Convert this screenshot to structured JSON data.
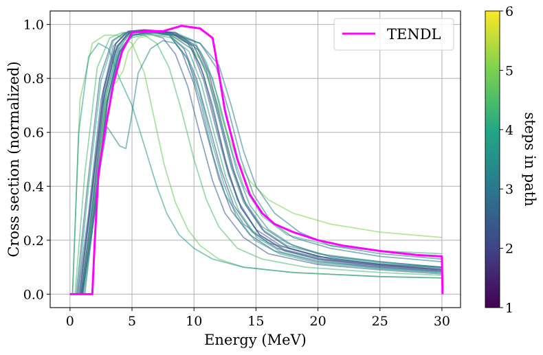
{
  "chart_data": {
    "type": "line",
    "xlabel": "Energy (MeV)",
    "ylabel": "Cross section (normalized)",
    "xlim": [
      -1.6,
      31.5
    ],
    "ylim": [
      -0.05,
      1.05
    ],
    "x_ticks": [
      0,
      5,
      10,
      15,
      20,
      25,
      30
    ],
    "x_tick_labels": [
      "0",
      "5",
      "10",
      "15",
      "20",
      "25",
      "30"
    ],
    "y_ticks": [
      0.0,
      0.2,
      0.4,
      0.6,
      0.8,
      1.0
    ],
    "y_tick_labels": [
      "0.0",
      "0.2",
      "0.4",
      "0.6",
      "0.8",
      "1.0"
    ],
    "grid": true,
    "legend": {
      "position": "top-right",
      "entries": [
        {
          "label": "TENDL",
          "color": "#ff00ff"
        }
      ]
    },
    "colorbar": {
      "label": "steps in path",
      "min": 1,
      "max": 6,
      "ticks": [
        1,
        2,
        3,
        4,
        5,
        6
      ],
      "tick_labels": [
        "1",
        "2",
        "3",
        "4",
        "5",
        "6"
      ],
      "colormap": "viridis",
      "colors": [
        "#440154",
        "#414487",
        "#2a788e",
        "#22a884",
        "#7ad151",
        "#fde725"
      ]
    },
    "series": [
      {
        "name": "TENDL",
        "color": "#ff00ff",
        "x": [
          0,
          1.8,
          2.0,
          2.3,
          2.8,
          3.5,
          4.2,
          5.0,
          6.0,
          7.5,
          9.0,
          10.5,
          11.5,
          12.0,
          12.5,
          13.5,
          14.5,
          15.5,
          16.5,
          18.0,
          20.0,
          22.0,
          25.0,
          28.0,
          30.0,
          30.05
        ],
        "y": [
          0.0,
          0.0,
          0.2,
          0.45,
          0.6,
          0.78,
          0.9,
          0.97,
          0.975,
          0.975,
          0.995,
          0.985,
          0.95,
          0.82,
          0.68,
          0.5,
          0.37,
          0.3,
          0.26,
          0.23,
          0.2,
          0.18,
          0.16,
          0.145,
          0.14,
          0.0
        ]
      }
    ],
    "ensemble": [
      {
        "steps": 2.6,
        "x": [
          0,
          0.6,
          1.5,
          2.5,
          3.5,
          4.5,
          6.0,
          8.0,
          9.5,
          10.5,
          11.5,
          12.5,
          13.5,
          15.0,
          17.0,
          20.0,
          25.0,
          30.0
        ],
        "y": [
          0.0,
          0.0,
          0.3,
          0.72,
          0.92,
          0.97,
          0.98,
          0.97,
          0.93,
          0.85,
          0.7,
          0.5,
          0.35,
          0.24,
          0.18,
          0.14,
          0.11,
          0.09
        ]
      },
      {
        "steps": 2.2,
        "x": [
          0,
          0.8,
          1.7,
          2.7,
          3.7,
          4.7,
          6.0,
          8.0,
          9.0,
          10.0,
          11.0,
          12.0,
          13.0,
          14.5,
          16.5,
          20.0,
          25.0,
          30.0
        ],
        "y": [
          0.0,
          0.0,
          0.35,
          0.75,
          0.93,
          0.975,
          0.98,
          0.96,
          0.9,
          0.78,
          0.6,
          0.43,
          0.31,
          0.22,
          0.16,
          0.12,
          0.1,
          0.085
        ]
      },
      {
        "steps": 3.0,
        "x": [
          0,
          1.0,
          1.9,
          2.9,
          3.9,
          4.9,
          6.5,
          8.5,
          10.0,
          11.0,
          12.0,
          13.0,
          14.0,
          15.5,
          17.5,
          20.0,
          25.0,
          30.0
        ],
        "y": [
          0.0,
          0.0,
          0.33,
          0.73,
          0.91,
          0.97,
          0.975,
          0.965,
          0.92,
          0.83,
          0.66,
          0.48,
          0.35,
          0.25,
          0.19,
          0.15,
          0.12,
          0.1
        ]
      },
      {
        "steps": 2.4,
        "x": [
          0,
          0.5,
          1.4,
          2.4,
          3.4,
          4.4,
          6.0,
          7.5,
          8.5,
          9.5,
          10.5,
          11.5,
          12.5,
          14.0,
          16.0,
          20.0,
          25.0,
          30.0
        ],
        "y": [
          0.0,
          0.0,
          0.4,
          0.8,
          0.94,
          0.97,
          0.97,
          0.95,
          0.89,
          0.77,
          0.59,
          0.42,
          0.3,
          0.21,
          0.15,
          0.11,
          0.09,
          0.075
        ]
      },
      {
        "steps": 3.4,
        "x": [
          0,
          1.2,
          2.1,
          3.1,
          4.1,
          5.1,
          7.0,
          9.0,
          10.5,
          11.5,
          12.5,
          13.5,
          14.5,
          16.0,
          18.0,
          21.0,
          25.0,
          30.0
        ],
        "y": [
          0.0,
          0.0,
          0.36,
          0.74,
          0.9,
          0.96,
          0.97,
          0.955,
          0.9,
          0.8,
          0.62,
          0.45,
          0.33,
          0.24,
          0.18,
          0.14,
          0.12,
          0.1
        ]
      },
      {
        "steps": 2.0,
        "x": [
          0,
          0.7,
          1.6,
          2.6,
          3.6,
          4.6,
          6.0,
          8.0,
          9.2,
          10.2,
          11.2,
          12.2,
          13.2,
          14.7,
          16.7,
          20.0,
          25.0,
          30.0
        ],
        "y": [
          0.0,
          0.0,
          0.3,
          0.7,
          0.9,
          0.965,
          0.975,
          0.96,
          0.91,
          0.8,
          0.63,
          0.46,
          0.33,
          0.23,
          0.17,
          0.13,
          0.105,
          0.09
        ]
      },
      {
        "steps": 3.8,
        "x": [
          0,
          0.9,
          1.8,
          2.8,
          3.8,
          4.8,
          6.5,
          8.2,
          9.4,
          10.4,
          11.4,
          12.4,
          13.4,
          14.9,
          16.9,
          20.0,
          25.0,
          30.0
        ],
        "y": [
          0.0,
          0.0,
          0.28,
          0.68,
          0.88,
          0.95,
          0.965,
          0.95,
          0.88,
          0.76,
          0.57,
          0.41,
          0.29,
          0.2,
          0.15,
          0.115,
          0.095,
          0.08
        ]
      },
      {
        "steps": 4.4,
        "x": [
          0,
          0.4,
          1.2,
          2.2,
          3.2,
          4.2,
          6.0,
          7.0,
          8.0,
          9.0,
          10.0,
          11.0,
          12.0,
          13.5,
          15.5,
          19.0,
          25.0,
          30.0
        ],
        "y": [
          0.0,
          0.0,
          0.45,
          0.84,
          0.95,
          0.97,
          0.96,
          0.93,
          0.84,
          0.68,
          0.5,
          0.35,
          0.25,
          0.17,
          0.13,
          0.1,
          0.08,
          0.07
        ]
      },
      {
        "steps": 4.8,
        "x": [
          0,
          0.2,
          0.8,
          1.8,
          2.8,
          3.8,
          5.0,
          6.0,
          6.8,
          7.6,
          8.5,
          9.5,
          10.5,
          12.0,
          14.0,
          18.0,
          25.0,
          30.0
        ],
        "y": [
          0.0,
          0.0,
          0.72,
          0.93,
          0.96,
          0.96,
          0.93,
          0.82,
          0.65,
          0.48,
          0.34,
          0.24,
          0.18,
          0.13,
          0.1,
          0.08,
          0.065,
          0.06
        ]
      },
      {
        "steps": 3.6,
        "x": [
          0,
          0.2,
          0.7,
          1.5,
          2.3,
          3.1,
          4.0,
          5.0,
          6.0,
          7.0,
          7.8,
          8.8,
          10.0,
          11.5,
          14.0,
          18.0,
          25.0,
          30.0
        ],
        "y": [
          0.0,
          0.0,
          0.6,
          0.88,
          0.93,
          0.91,
          0.8,
          0.7,
          0.55,
          0.4,
          0.3,
          0.22,
          0.17,
          0.13,
          0.1,
          0.08,
          0.065,
          0.06
        ]
      },
      {
        "steps": 3.2,
        "x": [
          0,
          1.0,
          2.0,
          3.0,
          4.0,
          4.5,
          4.9,
          5.5,
          6.5,
          7.5,
          8.5,
          9.5,
          10.5,
          11.5,
          12.5,
          14.0,
          16.0,
          20.0,
          25.0,
          30.0
        ],
        "y": [
          0.0,
          0.0,
          0.35,
          0.62,
          0.55,
          0.54,
          0.64,
          0.82,
          0.91,
          0.94,
          0.93,
          0.87,
          0.72,
          0.52,
          0.37,
          0.26,
          0.19,
          0.14,
          0.11,
          0.1
        ]
      },
      {
        "steps": 5.0,
        "x": [
          0,
          1.0,
          2.0,
          3.0,
          3.8,
          4.3,
          4.7,
          5.5,
          6.5,
          8.0,
          9.5,
          10.5,
          11.5,
          12.5,
          13.5,
          14.5,
          16.0,
          18.0,
          21.0,
          25.0,
          30.0
        ],
        "y": [
          0.0,
          0.0,
          0.38,
          0.75,
          0.79,
          0.83,
          0.9,
          0.95,
          0.96,
          0.96,
          0.93,
          0.87,
          0.76,
          0.62,
          0.5,
          0.42,
          0.35,
          0.3,
          0.26,
          0.23,
          0.21
        ]
      },
      {
        "steps": 4.2,
        "x": [
          0,
          1.0,
          1.9,
          2.9,
          3.9,
          4.9,
          6.5,
          8.5,
          10.0,
          11.0,
          12.0,
          13.0,
          14.0,
          15.5,
          17.5,
          21.0,
          25.0,
          30.0
        ],
        "y": [
          0.0,
          0.0,
          0.34,
          0.74,
          0.92,
          0.97,
          0.98,
          0.97,
          0.94,
          0.86,
          0.72,
          0.54,
          0.4,
          0.29,
          0.22,
          0.18,
          0.16,
          0.15
        ]
      },
      {
        "steps": 1.8,
        "x": [
          0,
          1.0,
          2.0,
          3.0,
          4.0,
          5.0,
          6.5,
          8.5,
          10.2,
          11.2,
          12.2,
          13.2,
          14.2,
          15.7,
          17.7,
          21.0,
          25.0,
          30.0
        ],
        "y": [
          0.0,
          0.0,
          0.32,
          0.72,
          0.9,
          0.96,
          0.975,
          0.97,
          0.92,
          0.82,
          0.64,
          0.46,
          0.33,
          0.23,
          0.17,
          0.13,
          0.11,
          0.095
        ]
      },
      {
        "steps": 2.8,
        "x": [
          0,
          0.9,
          1.8,
          2.8,
          3.8,
          4.8,
          6.5,
          8.5,
          10.5,
          11.8,
          12.8,
          13.8,
          14.8,
          16.2,
          18.0,
          21.0,
          25.0,
          30.0
        ],
        "y": [
          0.0,
          0.0,
          0.34,
          0.75,
          0.92,
          0.97,
          0.975,
          0.965,
          0.93,
          0.84,
          0.68,
          0.5,
          0.37,
          0.27,
          0.21,
          0.17,
          0.14,
          0.12
        ]
      },
      {
        "steps": 3.0,
        "x": [
          0,
          1.0,
          2.0,
          3.0,
          4.0,
          5.0,
          6.5,
          8.5,
          10.5,
          12.0,
          13.0,
          14.0,
          15.0,
          16.5,
          18.5,
          21.0,
          25.0,
          30.0
        ],
        "y": [
          0.0,
          0.0,
          0.3,
          0.7,
          0.9,
          0.96,
          0.97,
          0.96,
          0.93,
          0.85,
          0.7,
          0.53,
          0.4,
          0.3,
          0.23,
          0.18,
          0.15,
          0.13
        ]
      },
      {
        "steps": 2.5,
        "x": [
          0,
          0.8,
          1.7,
          2.7,
          3.7,
          4.7,
          6.0,
          8.0,
          9.8,
          10.8,
          11.8,
          12.8,
          13.8,
          15.3,
          17.3,
          20.5,
          25.0,
          30.0
        ],
        "y": [
          0.0,
          0.0,
          0.36,
          0.76,
          0.93,
          0.975,
          0.98,
          0.965,
          0.91,
          0.79,
          0.61,
          0.44,
          0.32,
          0.22,
          0.16,
          0.125,
          0.1,
          0.085
        ]
      },
      {
        "steps": 4.0,
        "x": [
          0,
          0.6,
          1.5,
          2.5,
          3.5,
          4.5,
          6.0,
          8.0,
          9.6,
          10.6,
          11.6,
          12.6,
          13.6,
          15.1,
          17.1,
          20.5,
          25.0,
          30.0
        ],
        "y": [
          0.0,
          0.0,
          0.4,
          0.79,
          0.94,
          0.97,
          0.975,
          0.96,
          0.9,
          0.78,
          0.6,
          0.43,
          0.31,
          0.21,
          0.155,
          0.12,
          0.095,
          0.08
        ]
      },
      {
        "steps": 3.3,
        "x": [
          0,
          1.1,
          2.0,
          3.0,
          4.0,
          5.0,
          6.5,
          8.5,
          10.0,
          11.0,
          12.0,
          13.0,
          14.0,
          15.5,
          17.5,
          21.0,
          25.0,
          30.0
        ],
        "y": [
          0.0,
          0.0,
          0.3,
          0.72,
          0.91,
          0.96,
          0.97,
          0.96,
          0.92,
          0.82,
          0.65,
          0.47,
          0.34,
          0.24,
          0.18,
          0.14,
          0.115,
          0.1
        ]
      },
      {
        "steps": 2.3,
        "x": [
          0,
          0.9,
          1.8,
          2.8,
          3.8,
          4.8,
          6.2,
          8.2,
          9.8,
          10.8,
          11.8,
          12.8,
          13.8,
          15.3,
          17.3,
          20.5,
          25.0,
          30.0
        ],
        "y": [
          0.0,
          0.0,
          0.32,
          0.74,
          0.92,
          0.97,
          0.98,
          0.97,
          0.92,
          0.81,
          0.63,
          0.45,
          0.32,
          0.22,
          0.165,
          0.13,
          0.105,
          0.09
        ]
      }
    ]
  }
}
